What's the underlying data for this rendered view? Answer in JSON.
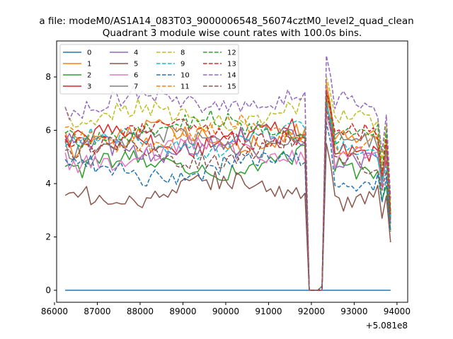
{
  "chart_data": {
    "type": "line",
    "suptitle": "a file: modeM0/AS1A14_083T03_9000006548_56074cztM0_level2_quad_clean",
    "title": "Quadrant 3 module wise count rates with 100.0s bins.",
    "xlabel": "",
    "ylabel": "",
    "x_offset_label": "+5.081e8",
    "x_start": 86250,
    "x_step": 100,
    "x_count": 77,
    "xlim": [
      86050,
      94250
    ],
    "ylim": [
      -0.45,
      9.35
    ],
    "xticks": [
      86000,
      87000,
      88000,
      89000,
      90000,
      91000,
      92000,
      93000,
      94000
    ],
    "yticks": [
      0,
      2,
      4,
      6,
      8
    ],
    "grid": false,
    "legend": {
      "location": "upper-left",
      "ncol": 4
    },
    "series": [
      {
        "name": "0",
        "color": "#1f77b4",
        "dash": "solid",
        "base": 0.0
      },
      {
        "name": "1",
        "color": "#ff7f0e",
        "dash": "solid",
        "base": 5.6,
        "peak": 7.8
      },
      {
        "name": "2",
        "color": "#2ca02c",
        "dash": "solid",
        "base": 4.5,
        "peak": 7.2
      },
      {
        "name": "3",
        "color": "#d62728",
        "dash": "solid",
        "base": 5.5,
        "peak": 7.4
      },
      {
        "name": "4",
        "color": "#9467bd",
        "dash": "solid",
        "base": 5.3,
        "peak": 7.0
      },
      {
        "name": "5",
        "color": "#8c564b",
        "dash": "solid",
        "base": 3.6,
        "peak": 5.5
      },
      {
        "name": "6",
        "color": "#e377c2",
        "dash": "solid",
        "base": 5.0,
        "peak": 6.6
      },
      {
        "name": "7",
        "color": "#7f7f7f",
        "dash": "solid",
        "base": 5.4,
        "peak": 7.0
      },
      {
        "name": "8",
        "color": "#bcbd22",
        "dash": "dashed",
        "base": 6.4,
        "peak": 8.0
      },
      {
        "name": "9",
        "color": "#17becf",
        "dash": "dashed",
        "base": 5.4,
        "peak": 7.0
      },
      {
        "name": "10",
        "color": "#1f77b4",
        "dash": "dashed",
        "base": 4.4,
        "peak": 6.3
      },
      {
        "name": "11",
        "color": "#ff7f0e",
        "dash": "dashed",
        "base": 5.7,
        "peak": 7.4
      },
      {
        "name": "12",
        "color": "#2ca02c",
        "dash": "dashed",
        "base": 5.9,
        "peak": 7.5
      },
      {
        "name": "13",
        "color": "#d62728",
        "dash": "dashed",
        "base": 5.7,
        "peak": 7.5
      },
      {
        "name": "14",
        "color": "#9467bd",
        "dash": "dashed",
        "base": 6.9,
        "peak": 8.8
      },
      {
        "name": "15",
        "color": "#8c564b",
        "dash": "dashed",
        "base": 5.0,
        "peak": 6.8
      }
    ]
  }
}
